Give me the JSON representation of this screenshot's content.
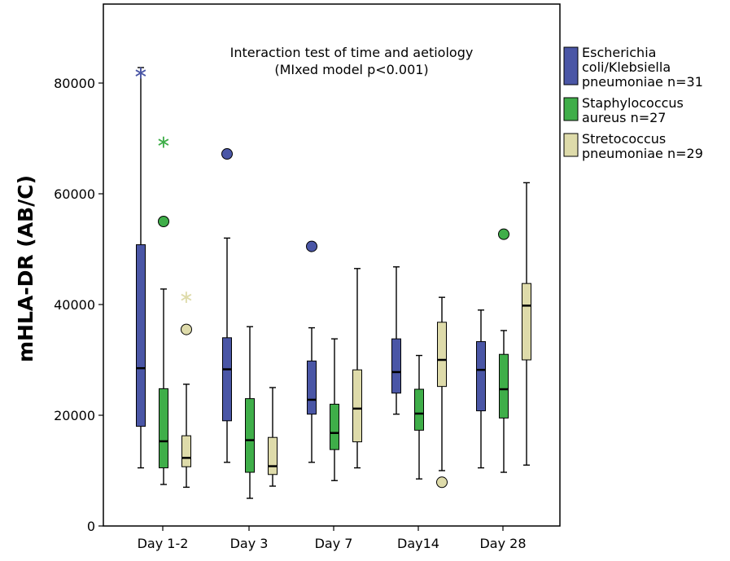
{
  "chart_data": {
    "type": "box",
    "ylabel": "mHLA-DR (AB/C)",
    "xlabel": "",
    "ylim": [
      0,
      80000
    ],
    "yticks": [
      "0",
      "20000",
      "40000",
      "60000",
      "80000"
    ],
    "categories": [
      "Day 1-2",
      "Day 3",
      "Day 7",
      "Day14",
      "Day 28"
    ],
    "annotation": [
      "Interaction test of time and aetiology",
      "(MIxed model p<0.001)"
    ],
    "legend_position": "right",
    "series": [
      {
        "name": "Escherichia coli/Klebsiella pneumoniae n=31",
        "legend_lines": [
          "Escherichia",
          "coli/Klebsiella",
          "pneumoniae n=31"
        ],
        "color": "#4a56a6",
        "boxes": [
          {
            "min": 10500,
            "q1": 18000,
            "median": 28500,
            "q3": 50800,
            "max": 82800,
            "outliers": [],
            "extremes": [
              82300
            ]
          },
          {
            "min": 11500,
            "q1": 19000,
            "median": 28300,
            "q3": 34000,
            "max": 52000,
            "outliers": [
              67200
            ],
            "extremes": []
          },
          {
            "min": 11500,
            "q1": 20200,
            "median": 22800,
            "q3": 29800,
            "max": 35800,
            "outliers": [
              50500
            ],
            "extremes": []
          },
          {
            "min": 20200,
            "q1": 24000,
            "median": 27800,
            "q3": 33800,
            "max": 46800,
            "outliers": [],
            "extremes": []
          },
          {
            "min": 10500,
            "q1": 20800,
            "median": 28200,
            "q3": 33300,
            "max": 39000,
            "outliers": [],
            "extremes": []
          }
        ]
      },
      {
        "name": "Staphylococcus aureus n=27",
        "legend_lines": [
          "Staphylococcus",
          "aureus n=27"
        ],
        "color": "#3fae49",
        "boxes": [
          {
            "min": 7500,
            "q1": 10500,
            "median": 15300,
            "q3": 24800,
            "max": 42800,
            "outliers": [
              55000
            ],
            "extremes": [
              69800
            ]
          },
          {
            "min": 5000,
            "q1": 9700,
            "median": 15500,
            "q3": 23000,
            "max": 36000,
            "outliers": [],
            "extremes": []
          },
          {
            "min": 8200,
            "q1": 13800,
            "median": 16800,
            "q3": 22000,
            "max": 33800,
            "outliers": [],
            "extremes": []
          },
          {
            "min": 8500,
            "q1": 17300,
            "median": 20300,
            "q3": 24700,
            "max": 30800,
            "outliers": [],
            "extremes": []
          },
          {
            "min": 9700,
            "q1": 19500,
            "median": 24700,
            "q3": 31000,
            "max": 35300,
            "outliers": [
              52700
            ],
            "extremes": []
          }
        ]
      },
      {
        "name": "Stretococcus pneumoniae n=29",
        "legend_lines": [
          "Stretococcus",
          "pneumoniae n=29"
        ],
        "color": "#dedbaa",
        "boxes": [
          {
            "min": 7000,
            "q1": 10700,
            "median": 12300,
            "q3": 16300,
            "max": 25600,
            "outliers": [
              35500
            ],
            "extremes": [
              41800
            ]
          },
          {
            "min": 7200,
            "q1": 9300,
            "median": 10800,
            "q3": 16000,
            "max": 25000,
            "outliers": [],
            "extremes": []
          },
          {
            "min": 10500,
            "q1": 15200,
            "median": 21200,
            "q3": 28200,
            "max": 46500,
            "outliers": [],
            "extremes": []
          },
          {
            "min": 10000,
            "q1": 25200,
            "median": 30000,
            "q3": 36800,
            "max": 41300,
            "outliers": [
              7900
            ],
            "extremes": []
          },
          {
            "min": 11000,
            "q1": 30000,
            "median": 39800,
            "q3": 43800,
            "max": 62000,
            "outliers": [],
            "extremes": []
          }
        ]
      }
    ]
  }
}
